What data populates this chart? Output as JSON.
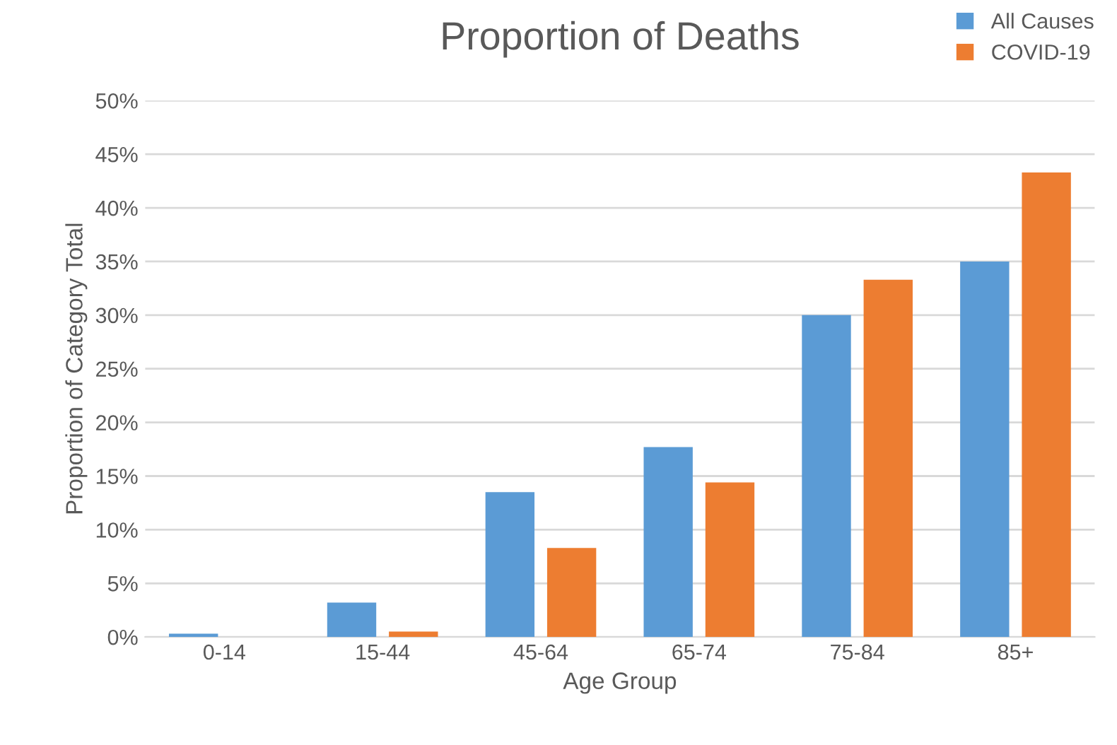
{
  "chart_data": {
    "type": "bar",
    "title": "Proportion of Deaths",
    "xlabel": "Age Group",
    "ylabel": "Proportion of Category Total",
    "categories": [
      "0-14",
      "15-44",
      "45-64",
      "65-74",
      "75-84",
      "85+"
    ],
    "series": [
      {
        "name": "All Causes",
        "color": "#5b9bd5",
        "values": [
          0.3,
          3.2,
          13.5,
          17.7,
          30.0,
          35.0
        ]
      },
      {
        "name": "COVID-19",
        "color": "#ed7d31",
        "values": [
          0,
          0.5,
          8.3,
          14.4,
          33.3,
          43.3
        ]
      }
    ],
    "ylim": [
      0,
      50
    ],
    "yticks": [
      {
        "value": 0,
        "label": "0%"
      },
      {
        "value": 5,
        "label": "5%"
      },
      {
        "value": 10,
        "label": "10%"
      },
      {
        "value": 15,
        "label": "15%"
      },
      {
        "value": 20,
        "label": "20%"
      },
      {
        "value": 25,
        "label": "25%"
      },
      {
        "value": 30,
        "label": "30%"
      },
      {
        "value": 35,
        "label": "35%"
      },
      {
        "value": 40,
        "label": "40%"
      },
      {
        "value": 45,
        "label": "45%"
      },
      {
        "value": 50,
        "label": "50%"
      }
    ],
    "grid": "y",
    "legend": "top right"
  }
}
